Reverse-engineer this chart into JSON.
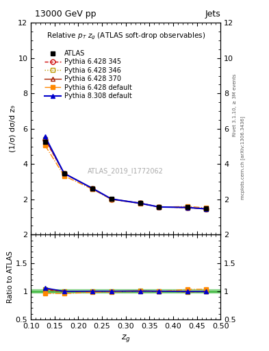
{
  "title_top": "13000 GeV pp",
  "title_right": "Jets",
  "plot_title": "Relative p$_T$ z$_g$ (ATLAS soft-drop observables)",
  "xlabel": "z$_g$",
  "ylabel_main": "(1/σ) dσ/d z₉",
  "ylabel_ratio": "Ratio to ATLAS",
  "watermark": "ATLAS_2019_I1772062",
  "right_label_top": "Rivet 3.1.10, ≥ 3M events",
  "right_label_bot": "mcplots.cern.ch [arXiv:1306.3436]",
  "x_values": [
    0.13,
    0.17,
    0.23,
    0.27,
    0.33,
    0.37,
    0.43,
    0.47
  ],
  "atlas_y": [
    5.25,
    3.48,
    2.62,
    2.02,
    1.78,
    1.57,
    1.55,
    1.47
  ],
  "p6_345_y": [
    5.38,
    3.46,
    2.62,
    2.01,
    1.78,
    1.57,
    1.53,
    1.46
  ],
  "p6_346_y": [
    5.42,
    3.47,
    2.62,
    2.01,
    1.79,
    1.57,
    1.53,
    1.46
  ],
  "p6_370_y": [
    5.45,
    3.48,
    2.62,
    2.02,
    1.79,
    1.57,
    1.54,
    1.46
  ],
  "p6_def_y": [
    5.05,
    3.33,
    2.57,
    1.99,
    1.77,
    1.56,
    1.6,
    1.52
  ],
  "p8_def_y": [
    5.55,
    3.47,
    2.62,
    2.02,
    1.78,
    1.57,
    1.54,
    1.46
  ],
  "p6_345_ratio": [
    1.024,
    0.994,
    1.0,
    0.995,
    1.0,
    1.0,
    0.987,
    0.993
  ],
  "p6_346_ratio": [
    1.032,
    0.997,
    1.0,
    0.995,
    1.006,
    1.0,
    0.987,
    0.993
  ],
  "p6_370_ratio": [
    1.038,
    1.0,
    1.0,
    1.0,
    1.006,
    1.0,
    0.994,
    0.993
  ],
  "p6_def_ratio": [
    0.962,
    0.957,
    0.981,
    0.985,
    0.994,
    0.994,
    1.032,
    1.034
  ],
  "p8_def_ratio": [
    1.057,
    0.997,
    1.0,
    1.0,
    1.0,
    1.0,
    0.994,
    0.993
  ],
  "atlas_color": "#000000",
  "p6_345_color": "#cc0000",
  "p6_346_color": "#bb9900",
  "p6_370_color": "#aa2200",
  "p6_def_color": "#ff8800",
  "p8_def_color": "#0000cc",
  "green_band_color": "#44bb44",
  "ylim_main": [
    0,
    12
  ],
  "ylim_ratio": [
    0.5,
    2.0
  ],
  "xlim": [
    0.1,
    0.5
  ],
  "yticks_main": [
    0,
    2,
    4,
    6,
    8,
    10,
    12
  ],
  "yticks_ratio": [
    0.5,
    1.0,
    1.5,
    2.0
  ],
  "yticklabels_ratio": [
    "0.5",
    "1",
    "1.5",
    "2"
  ]
}
